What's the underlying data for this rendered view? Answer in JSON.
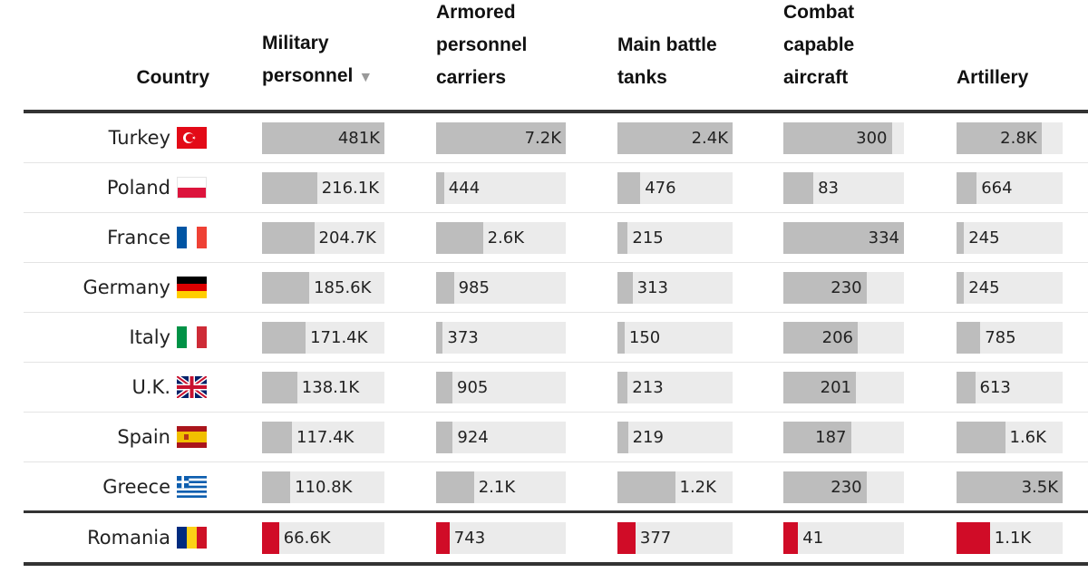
{
  "headers": {
    "country": "Country",
    "personnel": "Military personnel",
    "apc": "Armored personnel carriers",
    "tanks": "Main battle tanks",
    "aircraft": "Combat capable aircraft",
    "artillery": "Artillery"
  },
  "sort_icon": "▼",
  "colors": {
    "bar": "#bdbdbd",
    "track": "#ebebeb",
    "highlight": "#d00c27"
  },
  "chart_data": {
    "type": "table",
    "title": "",
    "sort": {
      "column": "personnel",
      "order": "descending"
    },
    "columns": [
      {
        "key": "personnel",
        "label": "Military personnel",
        "max": 481000
      },
      {
        "key": "apc",
        "label": "Armored personnel carriers",
        "max": 7200
      },
      {
        "key": "tanks",
        "label": "Main battle tanks",
        "max": 2400
      },
      {
        "key": "aircraft",
        "label": "Combat capable aircraft",
        "max": 334
      },
      {
        "key": "artillery",
        "label": "Artillery",
        "max": 3500
      }
    ],
    "rows": [
      {
        "country": "Turkey",
        "flag": "turkey-flag-icon",
        "highlight": false,
        "values": {
          "personnel": 481000,
          "apc": 7200,
          "tanks": 2400,
          "aircraft": 300,
          "artillery": 2800
        },
        "labels": {
          "personnel": "481K",
          "apc": "7.2K",
          "tanks": "2.4K",
          "aircraft": "300",
          "artillery": "2.8K"
        }
      },
      {
        "country": "Poland",
        "flag": "poland-flag-icon",
        "highlight": false,
        "values": {
          "personnel": 216100,
          "apc": 444,
          "tanks": 476,
          "aircraft": 83,
          "artillery": 664
        },
        "labels": {
          "personnel": "216.1K",
          "apc": "444",
          "tanks": "476",
          "aircraft": "83",
          "artillery": "664"
        }
      },
      {
        "country": "France",
        "flag": "france-flag-icon",
        "highlight": false,
        "values": {
          "personnel": 204700,
          "apc": 2600,
          "tanks": 215,
          "aircraft": 334,
          "artillery": 245
        },
        "labels": {
          "personnel": "204.7K",
          "apc": "2.6K",
          "tanks": "215",
          "aircraft": "334",
          "artillery": "245"
        }
      },
      {
        "country": "Germany",
        "flag": "germany-flag-icon",
        "highlight": false,
        "values": {
          "personnel": 185600,
          "apc": 985,
          "tanks": 313,
          "aircraft": 230,
          "artillery": 245
        },
        "labels": {
          "personnel": "185.6K",
          "apc": "985",
          "tanks": "313",
          "aircraft": "230",
          "artillery": "245"
        }
      },
      {
        "country": "Italy",
        "flag": "italy-flag-icon",
        "highlight": false,
        "values": {
          "personnel": 171400,
          "apc": 373,
          "tanks": 150,
          "aircraft": 206,
          "artillery": 785
        },
        "labels": {
          "personnel": "171.4K",
          "apc": "373",
          "tanks": "150",
          "aircraft": "206",
          "artillery": "785"
        }
      },
      {
        "country": "U.K.",
        "flag": "uk-flag-icon",
        "highlight": false,
        "values": {
          "personnel": 138100,
          "apc": 905,
          "tanks": 213,
          "aircraft": 201,
          "artillery": 613
        },
        "labels": {
          "personnel": "138.1K",
          "apc": "905",
          "tanks": "213",
          "aircraft": "201",
          "artillery": "613"
        }
      },
      {
        "country": "Spain",
        "flag": "spain-flag-icon",
        "highlight": false,
        "values": {
          "personnel": 117400,
          "apc": 924,
          "tanks": 219,
          "aircraft": 187,
          "artillery": 1600
        },
        "labels": {
          "personnel": "117.4K",
          "apc": "924",
          "tanks": "219",
          "aircraft": "187",
          "artillery": "1.6K"
        }
      },
      {
        "country": "Greece",
        "flag": "greece-flag-icon",
        "highlight": false,
        "values": {
          "personnel": 110800,
          "apc": 2100,
          "tanks": 1200,
          "aircraft": 230,
          "artillery": 3500
        },
        "labels": {
          "personnel": "110.8K",
          "apc": "2.1K",
          "tanks": "1.2K",
          "aircraft": "230",
          "artillery": "3.5K"
        }
      },
      {
        "country": "Romania",
        "flag": "romania-flag-icon",
        "highlight": true,
        "values": {
          "personnel": 66600,
          "apc": 743,
          "tanks": 377,
          "aircraft": 41,
          "artillery": 1100
        },
        "labels": {
          "personnel": "66.6K",
          "apc": "743",
          "tanks": "377",
          "aircraft": "41",
          "artillery": "1.1K"
        }
      }
    ]
  }
}
